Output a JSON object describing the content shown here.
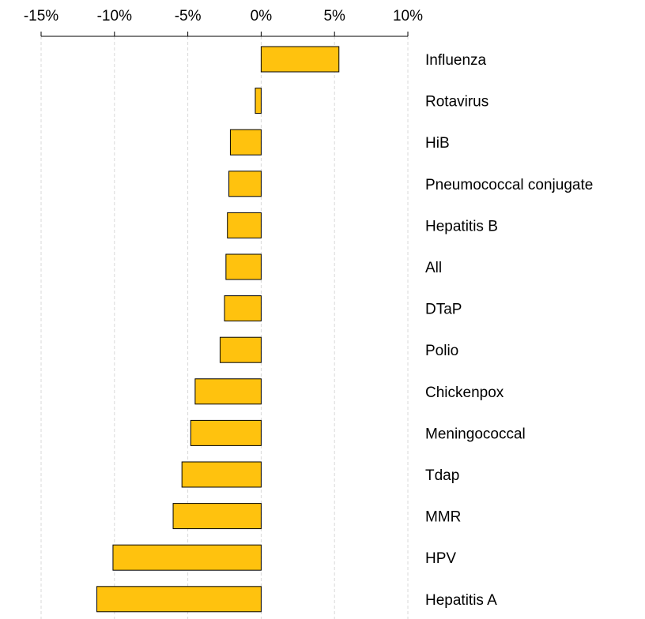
{
  "chart_data": {
    "type": "bar",
    "orientation": "horizontal",
    "categories": [
      "Influenza",
      "Rotavirus",
      "HiB",
      "Pneumococcal conjugate",
      "Hepatitis B",
      "All",
      "DTaP",
      "Polio",
      "Chickenpox",
      "Meningococcal",
      "Tdap",
      "MMR",
      "HPV",
      "Hepatitis A"
    ],
    "values": [
      5.3,
      -0.4,
      -2.1,
      -2.2,
      -2.3,
      -2.4,
      -2.5,
      -2.8,
      -4.5,
      -4.8,
      -5.4,
      -6.0,
      -10.1,
      -11.2
    ],
    "xlim": [
      -15,
      10
    ],
    "x_ticks": [
      "-15%",
      "-10%",
      "-5%",
      "0%",
      "5%",
      "10%"
    ],
    "x_axis_position": "top",
    "category_label_position": "right",
    "grid": "vertical dashed",
    "bar_color": "#FFC20E",
    "bar_edge_color": "#000000"
  }
}
